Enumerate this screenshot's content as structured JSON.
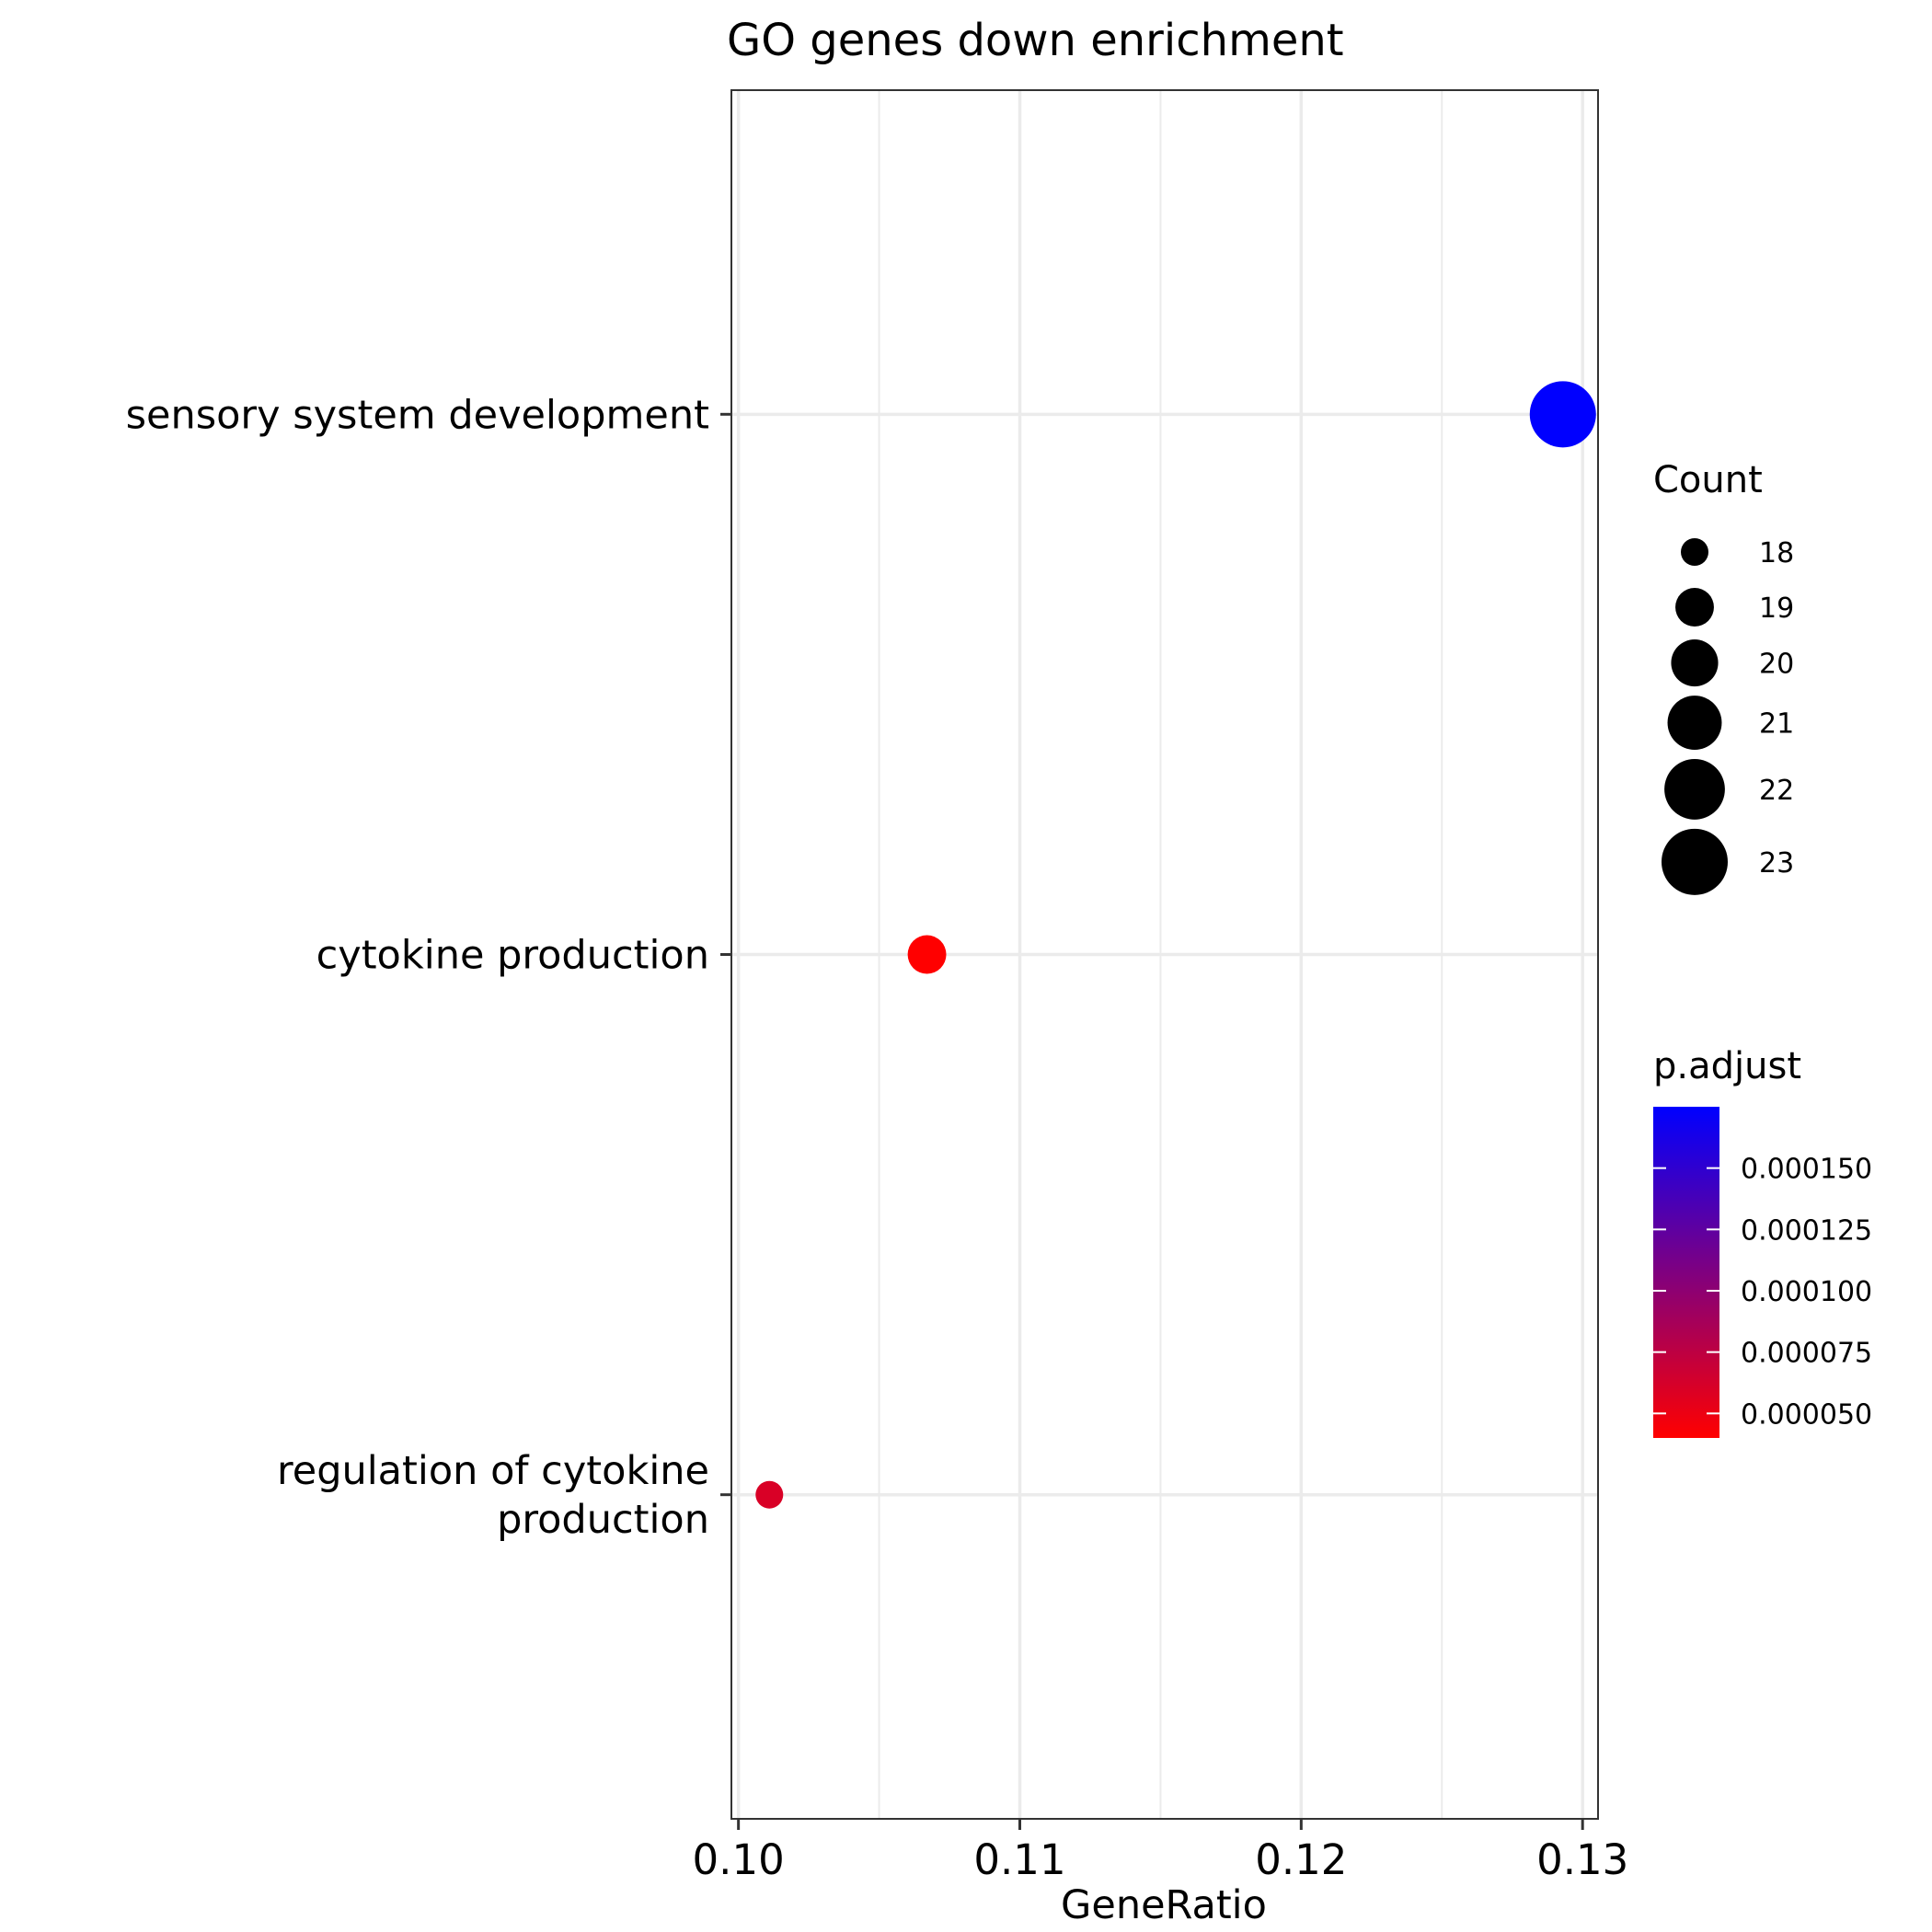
{
  "chart_data": {
    "type": "scatter",
    "title": "GO genes down enrichment",
    "xlabel": "GeneRatio",
    "ylabel": "",
    "xlim": [
      0.09975,
      0.13055
    ],
    "xticks": [
      0.1,
      0.11,
      0.12,
      0.13
    ],
    "xtick_labels": [
      "0.10",
      "0.11",
      "0.12",
      "0.13"
    ],
    "grid": true,
    "categories": [
      "sensory system development",
      "cytokine production",
      "regulation of cytokine production"
    ],
    "category_label_lines": [
      [
        "sensory system development"
      ],
      [
        "cytokine production"
      ],
      [
        "regulation of cytokine",
        "production"
      ]
    ],
    "points": [
      {
        "term": "sensory system development",
        "gene_ratio": 0.1293,
        "count": 23,
        "p_adjust": 0.000175
      },
      {
        "term": "cytokine production",
        "gene_ratio": 0.1067,
        "count": 19,
        "p_adjust": 4e-05
      },
      {
        "term": "regulation of cytokine production",
        "gene_ratio": 0.1011,
        "count": 18,
        "p_adjust": 6e-05
      }
    ],
    "size_legend": {
      "title": "Count",
      "values": [
        18,
        19,
        20,
        21,
        22,
        23
      ],
      "labels": [
        "18",
        "19",
        "20",
        "21",
        "22",
        "23"
      ]
    },
    "color_legend": {
      "title": "p.adjust",
      "range": [
        4e-05,
        0.000175
      ],
      "ticks": [
        5e-05,
        7.5e-05,
        0.0001,
        0.000125,
        0.00015
      ],
      "tick_labels": [
        "0.000050",
        "0.000075",
        "0.000100",
        "0.000125",
        "0.000150"
      ],
      "low_color": "#ff0000",
      "high_color": "#0000ff"
    },
    "legend_position": "right"
  }
}
